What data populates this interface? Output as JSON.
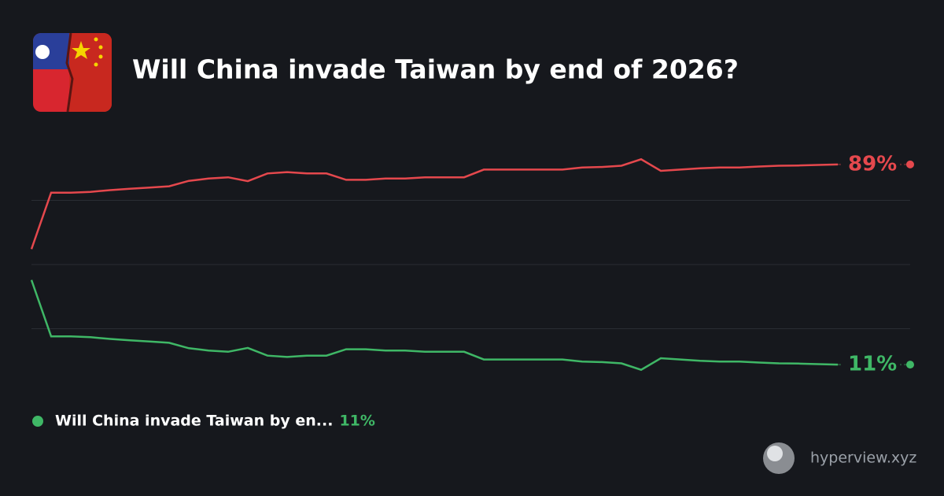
{
  "title": "Will China invade Taiwan by end of 2026?",
  "footer": "hyperview.xyz",
  "chart_data": {
    "type": "line",
    "ylim": [
      0,
      100
    ],
    "yticks": [
      25,
      50,
      75
    ],
    "grid": true,
    "series": [
      {
        "color": "#e5484d",
        "end_label": "89%",
        "values": [
          56,
          78,
          78,
          78.3,
          79,
          79.5,
          80,
          80.5,
          82.6,
          83.5,
          84,
          82.5,
          85.5,
          86,
          85.5,
          85.5,
          83,
          83,
          83.5,
          83.5,
          84,
          84,
          84,
          87,
          87,
          87,
          87,
          87,
          87.8,
          88,
          88.5,
          91,
          86.5,
          87,
          87.5,
          87.8,
          87.8,
          88.2,
          88.5,
          88.6,
          88.8,
          89
        ]
      },
      {
        "name": "Will China invade Taiwan by en...",
        "legend_label": "11%",
        "color": "#3fb766",
        "end_label": "11%",
        "values": [
          44,
          22,
          22,
          21.7,
          21,
          20.5,
          20,
          19.5,
          17.4,
          16.5,
          16,
          17.5,
          14.5,
          14,
          14.5,
          14.5,
          17,
          17,
          16.5,
          16.5,
          16,
          16,
          16,
          13,
          13,
          13,
          13,
          13,
          12.2,
          12,
          11.5,
          9,
          13.5,
          13,
          12.5,
          12.2,
          12.2,
          11.8,
          11.5,
          11.4,
          11.2,
          11
        ]
      }
    ]
  }
}
